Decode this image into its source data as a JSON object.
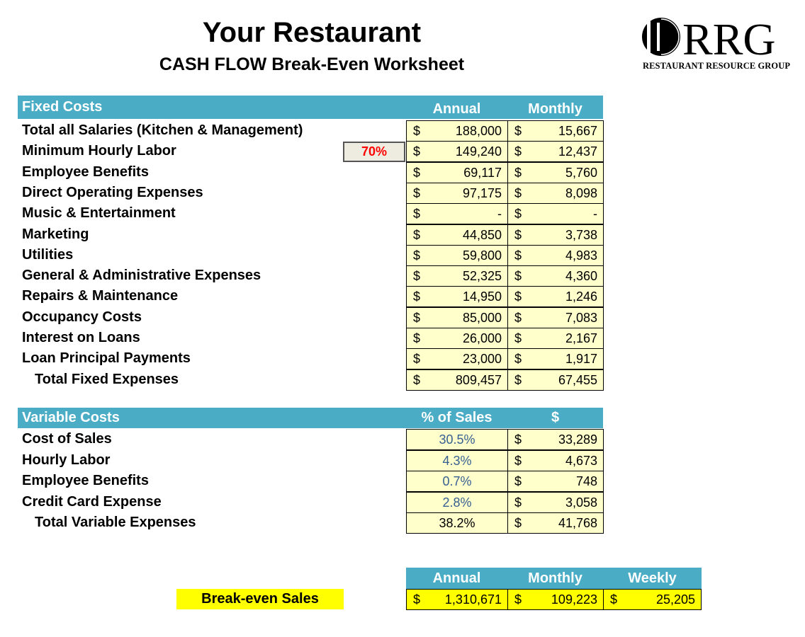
{
  "header": {
    "title": "Your Restaurant",
    "subtitle": "CASH FLOW Break-Even Worksheet",
    "logo_text": "RRG",
    "logo_tagline": "RESTAURANT RESOURCE GROUP"
  },
  "colors": {
    "header_bg": "#4bacc6",
    "cell_bg": "#ffffcc",
    "highlight": "#ffff00",
    "percent_text": "#376092",
    "input_text": "#ff0000"
  },
  "fixed": {
    "heading": "Fixed Costs",
    "col1": "Annual",
    "col2": "Monthly",
    "currency": "$",
    "input_label": "70%",
    "rows": [
      {
        "label": "Total all Salaries (Kitchen & Management)",
        "annual": "188,000",
        "monthly": "15,667"
      },
      {
        "label": "Minimum Hourly Labor",
        "annual": "149,240",
        "monthly": "12,437"
      },
      {
        "label": "Employee Benefits",
        "annual": "69,117",
        "monthly": "5,760"
      },
      {
        "label": "Direct Operating Expenses",
        "annual": "97,175",
        "monthly": "8,098"
      },
      {
        "label": "Music & Entertainment",
        "annual": "-",
        "monthly": "-"
      },
      {
        "label": "Marketing",
        "annual": "44,850",
        "monthly": "3,738"
      },
      {
        "label": "Utilities",
        "annual": "59,800",
        "monthly": "4,983"
      },
      {
        "label": "General & Administrative Expenses",
        "annual": "52,325",
        "monthly": "4,360"
      },
      {
        "label": "Repairs & Maintenance",
        "annual": "14,950",
        "monthly": "1,246"
      },
      {
        "label": "Occupancy Costs",
        "annual": "85,000",
        "monthly": "7,083"
      },
      {
        "label": "Interest on Loans",
        "annual": "26,000",
        "monthly": "2,167"
      },
      {
        "label": "Loan Principal Payments",
        "annual": "23,000",
        "monthly": "1,917"
      },
      {
        "label": "Total Fixed Expenses",
        "annual": "809,457",
        "monthly": "67,455",
        "total": true
      }
    ]
  },
  "variable": {
    "heading": "Variable Costs",
    "col1": "% of Sales",
    "col2": "$",
    "currency": "$",
    "rows": [
      {
        "label": "Cost of Sales",
        "pct": "30.5%",
        "amount": "33,289"
      },
      {
        "label": "Hourly Labor",
        "pct": "4.3%",
        "amount": "4,673"
      },
      {
        "label": "Employee Benefits",
        "pct": "0.7%",
        "amount": "748"
      },
      {
        "label": "Credit Card Expense",
        "pct": "2.8%",
        "amount": "3,058"
      },
      {
        "label": "Total Variable Expenses",
        "pct": "38.2%",
        "amount": "41,768",
        "total": true
      }
    ]
  },
  "breakeven": {
    "label": "Break-even Sales",
    "col1": "Annual",
    "col2": "Monthly",
    "col3": "Weekly",
    "currency": "$",
    "annual": "1,310,671",
    "monthly": "109,223",
    "weekly": "25,205"
  }
}
